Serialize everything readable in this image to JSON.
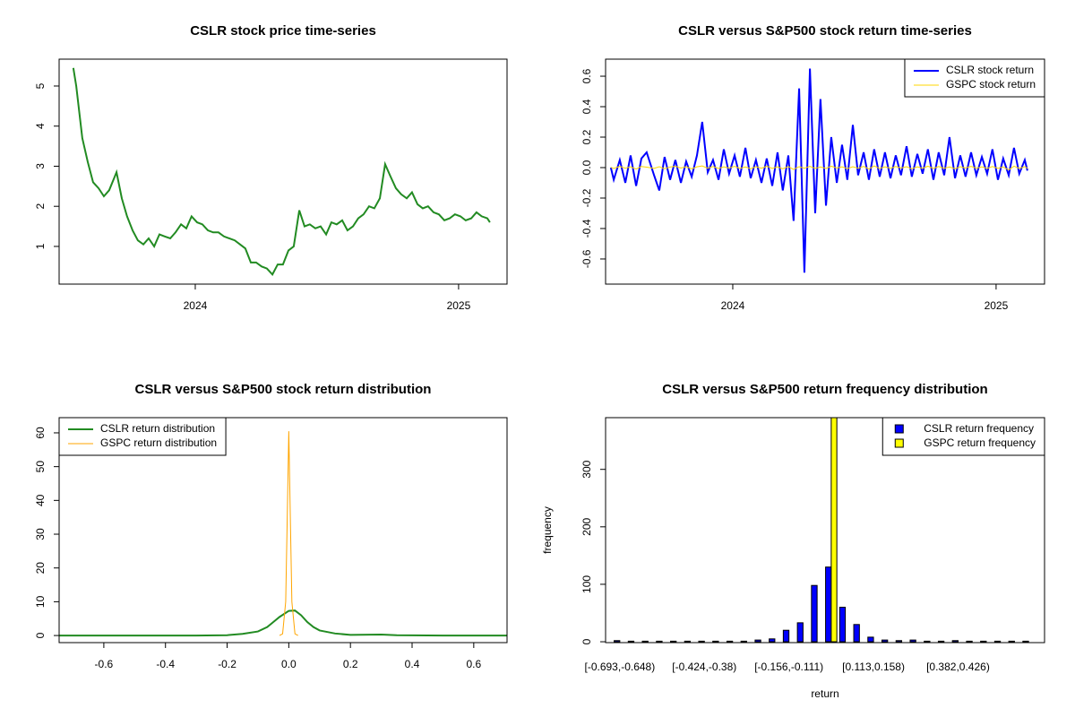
{
  "chart_data": [
    {
      "type": "line",
      "title": "CSLR stock price time-series",
      "x": [
        2023.537,
        2023.548,
        2023.571,
        2023.592,
        2023.612,
        2023.633,
        2023.653,
        2023.673,
        2023.701,
        2023.721,
        2023.741,
        2023.762,
        2023.782,
        2023.803,
        2023.823,
        2023.844,
        2023.864,
        2023.884,
        2023.905,
        2023.925,
        2023.946,
        2023.966,
        2023.986,
        2024.007,
        2024.027,
        2024.048,
        2024.068,
        2024.088,
        2024.109,
        2024.129,
        2024.15,
        2024.17,
        2024.19,
        2024.211,
        2024.231,
        2024.252,
        2024.272,
        2024.293,
        2024.313,
        2024.333,
        2024.354,
        2024.374,
        2024.395,
        2024.415,
        2024.435,
        2024.456,
        2024.476,
        2024.497,
        2024.517,
        2024.537,
        2024.558,
        2024.578,
        2024.599,
        2024.619,
        2024.639,
        2024.66,
        2024.68,
        2024.701,
        2024.721,
        2024.741,
        2024.762,
        2024.782,
        2024.803,
        2024.823,
        2024.844,
        2024.864,
        2024.884,
        2024.905,
        2024.925,
        2024.946,
        2024.966,
        2024.986,
        2025.007,
        2025.027,
        2025.048,
        2025.068,
        2025.088,
        2025.109,
        2025.119
      ],
      "values": [
        5.45,
        5.0,
        3.7,
        3.1,
        2.6,
        2.45,
        2.25,
        2.4,
        2.85,
        2.2,
        1.75,
        1.4,
        1.15,
        1.05,
        1.2,
        1.0,
        1.3,
        1.25,
        1.2,
        1.35,
        1.55,
        1.45,
        1.75,
        1.6,
        1.55,
        1.4,
        1.35,
        1.35,
        1.25,
        1.2,
        1.15,
        1.05,
        0.95,
        0.6,
        0.6,
        0.5,
        0.45,
        0.3,
        0.55,
        0.55,
        0.9,
        1.0,
        1.9,
        1.5,
        1.55,
        1.45,
        1.5,
        1.3,
        1.6,
        1.55,
        1.65,
        1.4,
        1.5,
        1.7,
        1.8,
        2.0,
        1.95,
        2.2,
        3.05,
        2.75,
        2.45,
        2.3,
        2.2,
        2.35,
        2.05,
        1.95,
        2.0,
        1.85,
        1.8,
        1.65,
        1.7,
        1.8,
        1.75,
        1.65,
        1.7,
        1.85,
        1.75,
        1.7,
        1.6
      ],
      "color": "#228b22",
      "xlim": [
        2023.483,
        2025.184
      ],
      "xticks": [
        2024,
        2025
      ],
      "ylim": [
        0.06,
        5.67
      ],
      "yticks": [
        1,
        2,
        3,
        4,
        5
      ]
    },
    {
      "type": "line",
      "title": "CSLR versus S&P500 stock return time-series",
      "x": [
        2023.537,
        2023.548,
        2023.571,
        2023.592,
        2023.612,
        2023.633,
        2023.653,
        2023.673,
        2023.701,
        2023.721,
        2023.741,
        2023.762,
        2023.782,
        2023.803,
        2023.823,
        2023.844,
        2023.864,
        2023.884,
        2023.905,
        2023.925,
        2023.946,
        2023.966,
        2023.986,
        2024.007,
        2024.027,
        2024.048,
        2024.068,
        2024.088,
        2024.109,
        2024.129,
        2024.15,
        2024.17,
        2024.19,
        2024.211,
        2024.231,
        2024.252,
        2024.272,
        2024.293,
        2024.313,
        2024.333,
        2024.354,
        2024.374,
        2024.395,
        2024.415,
        2024.435,
        2024.456,
        2024.476,
        2024.497,
        2024.517,
        2024.537,
        2024.558,
        2024.578,
        2024.599,
        2024.619,
        2024.639,
        2024.66,
        2024.68,
        2024.701,
        2024.721,
        2024.741,
        2024.762,
        2024.782,
        2024.803,
        2024.823,
        2024.844,
        2024.864,
        2024.884,
        2024.905,
        2024.925,
        2024.946,
        2024.966,
        2024.986,
        2025.007,
        2025.027,
        2025.048,
        2025.068,
        2025.088,
        2025.109,
        2025.119
      ],
      "series": [
        {
          "name": "CSLR stock return",
          "color": "#0000ff",
          "values": [
            0,
            -0.08,
            0.05,
            -0.1,
            0.08,
            -0.12,
            0.06,
            0.1,
            -0.05,
            -0.15,
            0.07,
            -0.08,
            0.05,
            -0.1,
            0.04,
            -0.06,
            0.08,
            0.3,
            -0.03,
            0.05,
            -0.08,
            0.12,
            -0.04,
            0.08,
            -0.06,
            0.13,
            -0.07,
            0.05,
            -0.1,
            0.06,
            -0.12,
            0.1,
            -0.15,
            0.08,
            -0.35,
            0.52,
            -0.69,
            0.65,
            -0.3,
            0.45,
            -0.25,
            0.2,
            -0.1,
            0.15,
            -0.08,
            0.28,
            -0.05,
            0.1,
            -0.08,
            0.12,
            -0.06,
            0.1,
            -0.07,
            0.08,
            -0.05,
            0.14,
            -0.06,
            0.09,
            -0.04,
            0.12,
            -0.08,
            0.1,
            -0.05,
            0.2,
            -0.07,
            0.08,
            -0.06,
            0.1,
            -0.05,
            0.07,
            -0.04,
            0.12,
            -0.08,
            0.06,
            -0.05,
            0.13,
            -0.04,
            0.05,
            -0.02
          ]
        },
        {
          "name": "GSPC stock return",
          "color": "#ffd700",
          "values": [
            0.002,
            -0.006,
            0.008,
            -0.004,
            0.005,
            -0.009,
            0.007,
            0.003,
            -0.005,
            0.006,
            -0.007,
            0.004,
            0.009,
            -0.003,
            0.006,
            -0.008,
            0.005,
            0.011,
            -0.004,
            0.007,
            -0.006,
            0.005,
            -0.003,
            0.008,
            -0.005,
            0.004,
            -0.007,
            0.006,
            -0.004,
            0.009,
            -0.006,
            0.005,
            -0.008,
            0.007,
            -0.012,
            0.006,
            -0.004,
            0.008,
            -0.005,
            0.004,
            -0.006,
            0.009,
            -0.003,
            0.005,
            -0.007,
            0.006,
            -0.004,
            0.008,
            -0.009,
            0.011,
            -0.006,
            0.005,
            -0.004,
            0.007,
            -0.003,
            0.006,
            -0.008,
            0.005,
            -0.004,
            0.009,
            -0.006,
            0.007,
            -0.005,
            0.004,
            -0.007,
            0.006,
            -0.003,
            0.008,
            -0.004,
            0.005,
            -0.006,
            0.007,
            -0.005,
            0.004,
            -0.015,
            0.009,
            -0.005,
            0.006,
            -0.004
          ]
        }
      ],
      "xlim": [
        2023.517,
        2025.184
      ],
      "xticks": [
        2024,
        2025
      ],
      "ylim": [
        -0.765,
        0.712
      ],
      "yticks": [
        -0.6,
        -0.4,
        -0.2,
        {
          "value": 0,
          "label": "0.0"
        },
        0.2,
        0.4,
        0.6
      ],
      "legend": "top-right"
    },
    {
      "type": "line",
      "title": "CSLR versus S&P500 stock return distribution",
      "series": [
        {
          "name": "CSLR return distribution",
          "color": "#228b22",
          "x": [
            -0.745,
            -0.3,
            -0.2,
            -0.15,
            -0.1,
            -0.07,
            -0.05,
            -0.03,
            0,
            0.02,
            0.04,
            0.06,
            0.08,
            0.1,
            0.15,
            0.2,
            0.3,
            0.35,
            0.5,
            0.708
          ],
          "values": [
            0,
            0,
            0.1,
            0.5,
            1.2,
            2.5,
            4,
            5.5,
            7.3,
            7.4,
            6,
            4,
            2.5,
            1.5,
            0.6,
            0.2,
            0.3,
            0.1,
            0,
            0
          ]
        },
        {
          "name": "GSPC return distribution",
          "color": "#ffa500",
          "x": [
            -0.03,
            -0.02,
            -0.01,
            -0.005,
            0,
            0.005,
            0.01,
            0.02,
            0.03
          ],
          "values": [
            0,
            0.5,
            10,
            35,
            60.5,
            35,
            10,
            0.5,
            0
          ]
        }
      ],
      "xlim": [
        -0.745,
        0.708
      ],
      "xticks": [
        -0.6,
        -0.4,
        -0.2,
        {
          "value": 0,
          "label": "0.0"
        },
        0.2,
        0.4,
        0.6
      ],
      "ylim": [
        -2.1,
        64.5
      ],
      "yticks": [
        0,
        10,
        20,
        30,
        40,
        50,
        60
      ],
      "legend": "top-left"
    },
    {
      "type": "bar",
      "title": "CSLR versus S&P500 return frequency distribution",
      "x_label": "return",
      "y_label": "frequency",
      "categories": [
        "[-0.693,-0.648)",
        null,
        null,
        null,
        null,
        null,
        "[-0.424,-0.38)",
        null,
        null,
        null,
        null,
        null,
        "[-0.156,-0.111)",
        null,
        null,
        null,
        null,
        null,
        "[0.113,0.158)",
        null,
        null,
        null,
        null,
        null,
        "[0.382,0.426)",
        null,
        null,
        null,
        null,
        null
      ],
      "series": [
        {
          "name": "CSLR return frequency",
          "color": "#0000ff",
          "values": [
            2,
            1,
            1,
            1,
            1,
            1,
            1,
            1,
            1,
            1,
            3,
            5,
            20,
            33,
            98,
            130,
            60,
            30,
            8,
            3,
            2,
            3,
            1,
            1,
            2,
            1,
            1,
            1,
            1,
            1
          ]
        },
        {
          "name": "GSPC return frequency",
          "color": "#ffff00",
          "values": [
            0,
            0,
            0,
            0,
            0,
            0,
            0,
            0,
            0,
            0,
            0,
            0,
            0,
            0,
            0,
            400,
            0,
            0,
            0,
            0,
            0,
            0,
            0,
            0,
            0,
            0,
            0,
            0,
            0,
            0
          ]
        }
      ],
      "ylim": [
        -1.5,
        390
      ],
      "yticks": [
        0,
        100,
        200,
        300
      ],
      "legend": "top-right"
    }
  ]
}
